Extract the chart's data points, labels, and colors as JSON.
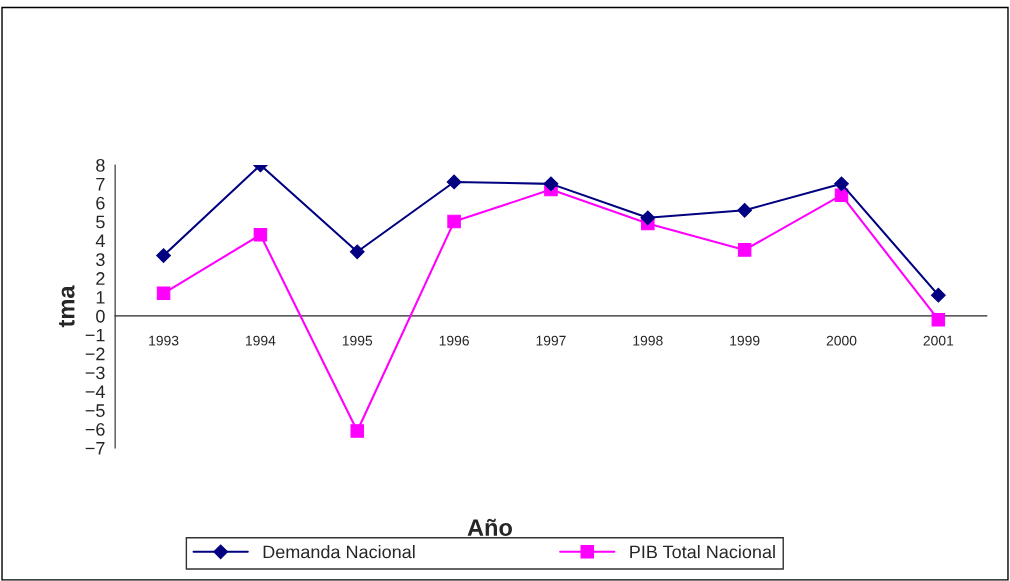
{
  "chart_data": {
    "type": "line",
    "xlabel": "Año",
    "ylabel": "tma",
    "categories": [
      "1993",
      "1994",
      "1995",
      "1996",
      "1997",
      "1998",
      "1999",
      "2000",
      "2001"
    ],
    "series": [
      {
        "name": "Demanda Nacional",
        "color": "#000080",
        "marker": "diamond",
        "values": [
          3.2,
          8.0,
          3.4,
          7.1,
          7.0,
          5.2,
          5.6,
          7.0,
          1.1
        ]
      },
      {
        "name": "PIB Total Nacional",
        "color": "#ff00ff",
        "marker": "square",
        "values": [
          1.2,
          4.3,
          -6.1,
          5.0,
          6.7,
          4.9,
          3.5,
          6.4,
          -0.2
        ]
      }
    ],
    "ylim": [
      -7,
      8
    ],
    "yticks": [
      -7,
      -6,
      -5,
      -4,
      -3,
      -2,
      -1,
      0,
      1,
      2,
      3,
      4,
      5,
      6,
      7,
      8
    ],
    "grid": false,
    "legend": "bottom",
    "line_style": "solid"
  }
}
